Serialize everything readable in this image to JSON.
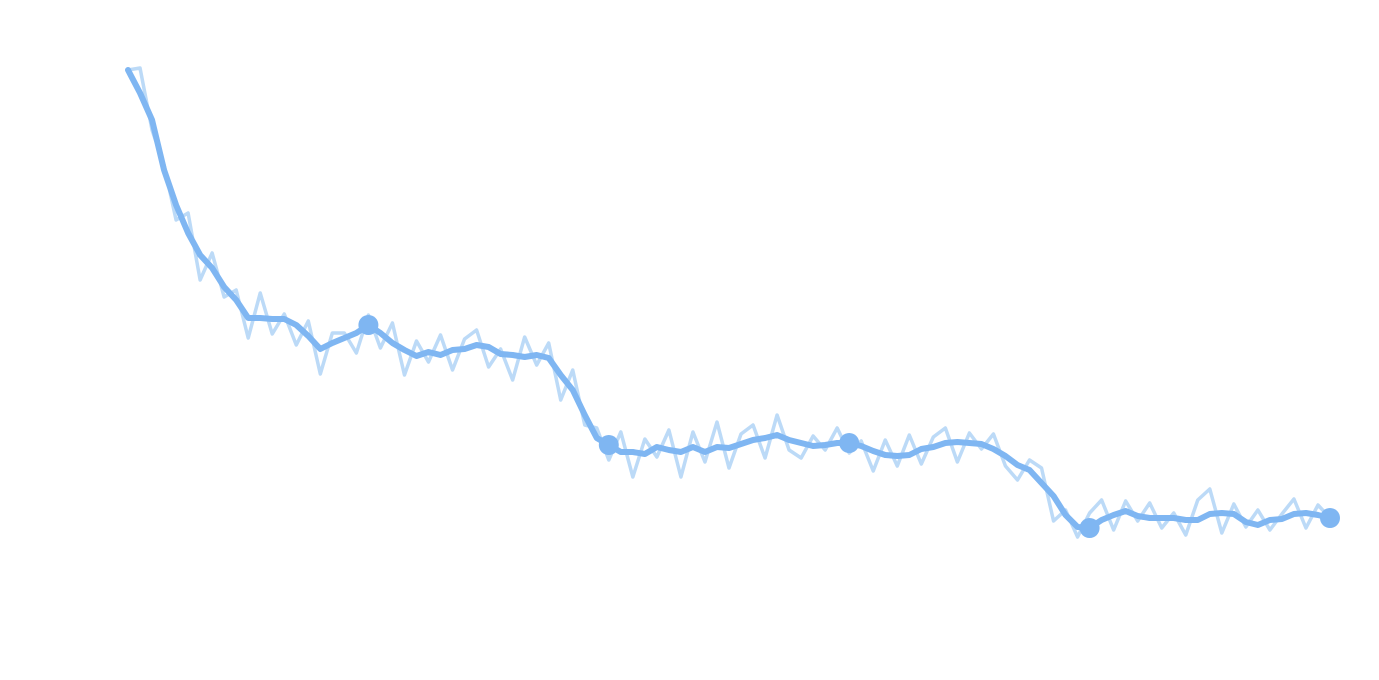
{
  "chart_data": {
    "type": "line",
    "x": [
      0,
      1,
      2,
      3,
      4,
      5,
      6,
      7,
      8,
      9,
      10,
      11,
      12,
      13,
      14,
      15,
      16,
      17,
      18,
      19,
      20,
      21,
      22,
      23,
      24,
      25,
      26,
      27,
      28,
      29,
      30,
      31,
      32,
      33,
      34,
      35,
      36,
      37,
      38,
      39,
      40,
      41,
      42,
      43,
      44,
      45,
      46,
      47,
      48,
      49,
      50,
      51,
      52,
      53,
      54,
      55,
      56,
      57,
      58,
      59,
      60,
      61,
      62,
      63,
      64,
      65,
      66,
      67,
      68,
      69,
      70,
      71,
      72,
      73,
      74,
      75,
      76,
      77,
      78,
      79,
      80,
      81,
      82,
      83,
      84,
      85,
      86,
      87,
      88,
      89,
      90,
      91,
      92,
      93,
      94,
      95,
      96,
      97,
      98,
      99,
      100
    ],
    "series": [
      {
        "color": "#bcdaf7",
        "values": [
          610,
          612,
          550,
          515,
          460,
          467,
          400,
          427,
          383,
          390,
          342,
          387,
          346,
          366,
          335,
          359,
          306,
          347,
          347,
          327,
          365,
          332,
          357,
          305,
          339,
          318,
          345,
          310,
          341,
          350,
          313,
          331,
          300,
          343,
          315,
          337,
          280,
          310,
          255,
          252,
          220,
          248,
          203,
          241,
          223,
          250,
          203,
          248,
          218,
          258,
          212,
          246,
          255,
          222,
          265,
          230,
          222,
          244,
          230,
          252,
          227,
          239,
          209,
          240,
          214,
          245,
          216,
          243,
          252,
          218,
          247,
          231,
          246,
          214,
          200,
          220,
          212,
          159,
          170,
          143,
          167,
          180,
          150,
          179,
          159,
          177,
          152,
          167,
          145,
          180,
          191,
          147,
          176,
          153,
          170,
          150,
          166,
          181,
          152,
          175,
          162
        ]
      },
      {
        "color": "#7fb6f2",
        "values": [
          610,
          587,
          560,
          510,
          475,
          447,
          425,
          412,
          393,
          380,
          362,
          362,
          361,
          361,
          355,
          344,
          331,
          337,
          342,
          347,
          355,
          347,
          337,
          330,
          324,
          328,
          325,
          330,
          331,
          335,
          333,
          326,
          325,
          323,
          325,
          322,
          305,
          290,
          265,
          242,
          235,
          228,
          228,
          226,
          233,
          230,
          228,
          233,
          228,
          233,
          232,
          236,
          240,
          242,
          245,
          240,
          237,
          234,
          235,
          237,
          237,
          234,
          229,
          225,
          224,
          225,
          231,
          233,
          237,
          238,
          237,
          236,
          231,
          224,
          215,
          210,
          197,
          184,
          165,
          153,
          152,
          160,
          165,
          169,
          164,
          162,
          162,
          162,
          160,
          160,
          166,
          167,
          166,
          158,
          155,
          160,
          161,
          166,
          167,
          165,
          162
        ]
      }
    ],
    "points": {
      "color": "#7fb6f2",
      "x": [
        20,
        40,
        60,
        80,
        100
      ],
      "values": [
        355,
        235,
        237,
        152,
        162
      ]
    },
    "xlim": [
      0,
      100
    ],
    "ylim": [
      0,
      680
    ]
  }
}
